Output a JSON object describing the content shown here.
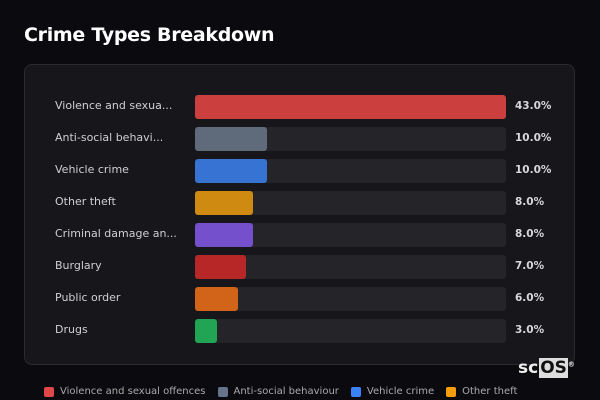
{
  "chart_data": {
    "type": "bar",
    "orientation": "horizontal",
    "title": "Crime Types Breakdown",
    "categories": [
      "Violence and sexua...",
      "Anti-social behavi...",
      "Vehicle crime",
      "Other theft",
      "Criminal damage an...",
      "Burglary",
      "Public order",
      "Drugs"
    ],
    "values": [
      43.0,
      10.0,
      10.0,
      8.0,
      8.0,
      7.0,
      6.0,
      3.0
    ],
    "value_labels": [
      "43.0%",
      "10.0%",
      "10.0%",
      "8.0%",
      "8.0%",
      "7.0%",
      "6.0%",
      "3.0%"
    ],
    "colors": [
      "#cc3f3f",
      "#5f6a7a",
      "#3673d3",
      "#cf8a12",
      "#7450cc",
      "#b82727",
      "#d2641a",
      "#22a455"
    ],
    "xlim": [
      0,
      43
    ],
    "legend": [
      {
        "label": "Violence and sexual offences",
        "color": "#e04848"
      },
      {
        "label": "Anti-social behaviour",
        "color": "#64748b"
      },
      {
        "label": "Vehicle crime",
        "color": "#3b82f6"
      },
      {
        "label": "Other theft",
        "color": "#f59e0b"
      }
    ],
    "legend_position": "bottom"
  },
  "logo": {
    "text_a": "sc",
    "text_b": "OS",
    "mark": "®"
  }
}
